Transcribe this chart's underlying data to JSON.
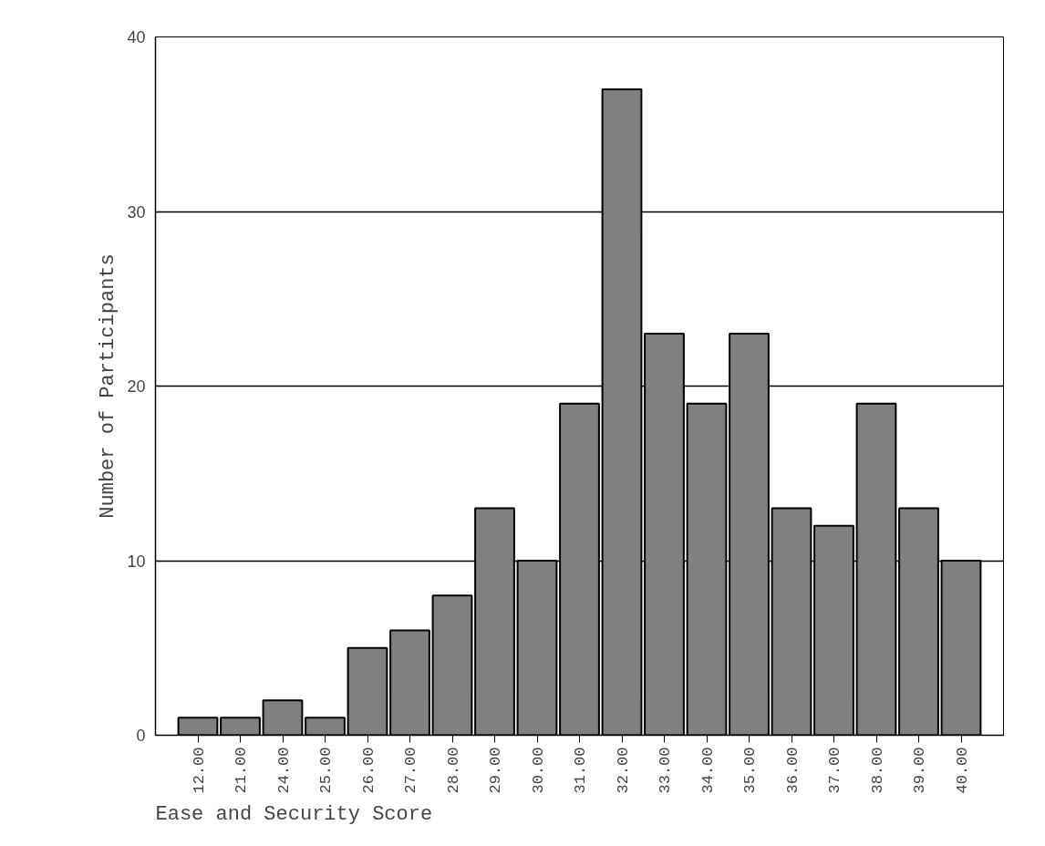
{
  "chart_data": {
    "type": "bar",
    "xlabel": "Ease and Security Score",
    "ylabel": "Number of Participants",
    "categories": [
      "12.00",
      "21.00",
      "24.00",
      "25.00",
      "26.00",
      "27.00",
      "28.00",
      "29.00",
      "30.00",
      "31.00",
      "32.00",
      "33.00",
      "34.00",
      "35.00",
      "36.00",
      "37.00",
      "38.00",
      "39.00",
      "40.00"
    ],
    "values": [
      1,
      1,
      2,
      1,
      5,
      6,
      8,
      13,
      10,
      19,
      37,
      23,
      19,
      23,
      13,
      12,
      19,
      13,
      10
    ],
    "color": "#808080",
    "ylim": [
      0,
      40
    ],
    "yticks": [
      0,
      10,
      20,
      30,
      40
    ],
    "grid": "y"
  }
}
